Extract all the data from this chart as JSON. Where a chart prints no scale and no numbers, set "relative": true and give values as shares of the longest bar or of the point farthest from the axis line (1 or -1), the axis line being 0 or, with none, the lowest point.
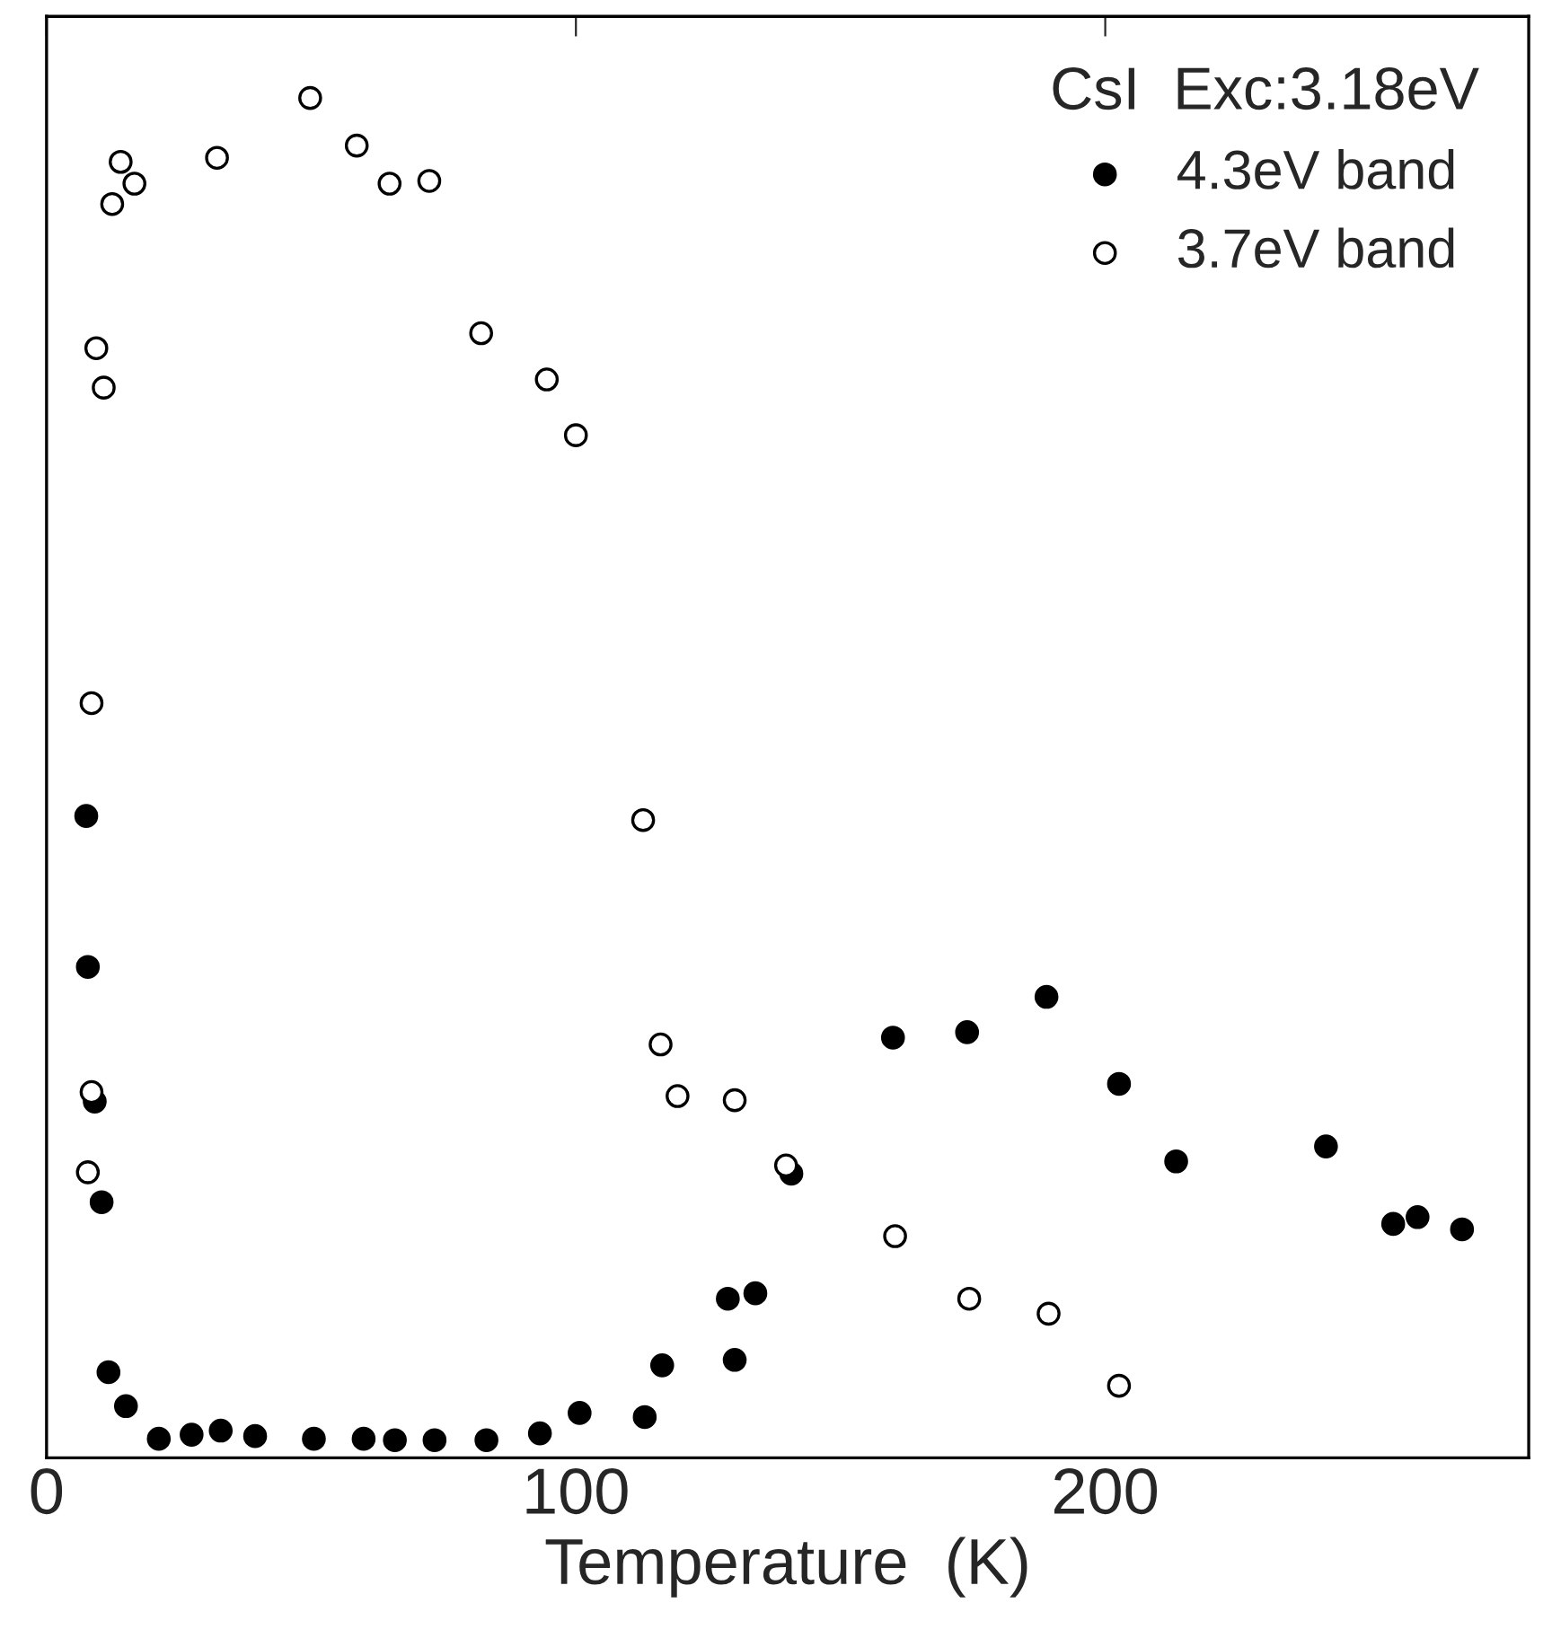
{
  "chart_data": {
    "type": "scatter",
    "xlabel": "Temperature  (K)",
    "legend_title": "CsI  Exc:3.18eV",
    "legend": "top right",
    "marker": "circle",
    "relative": true,
    "tick_labels": "x",
    "xlim": [
      0,
      280
    ],
    "xticks": [
      0,
      100,
      200
    ],
    "series": [
      {
        "name": "4.3eV band",
        "color": "#000000",
        "x": [
          7.5,
          7.8,
          9.1,
          10.4,
          11.7,
          15.0,
          21.2,
          27.4,
          32.9,
          39.4,
          50.5,
          59.9,
          65.8,
          73.3,
          83.1,
          93.2,
          100.7,
          113,
          116.3,
          128.7,
          130,
          133.9,
          140.7,
          159.9,
          173.9,
          188.9,
          202.6,
          213.4,
          241.7,
          254.4,
          259,
          267.4
        ],
        "values": [
          0.472,
          0.361,
          0.262,
          0.188,
          0.063,
          0.038,
          0.014,
          0.017,
          0.02,
          0.016,
          0.014,
          0.014,
          0.013,
          0.013,
          0.013,
          0.018,
          0.033,
          0.03,
          0.068,
          0.117,
          0.072,
          0.121,
          0.209,
          0.309,
          0.313,
          0.339,
          0.275,
          0.218,
          0.229,
          0.172,
          0.177,
          0.168
        ]
      },
      {
        "name": "3.7eV band",
        "color": "#ffffff",
        "x": [
          7.8,
          8.5,
          8.5,
          9.4,
          10.8,
          12.4,
          14.0,
          16.6,
          32.2,
          49.8,
          58.6,
          64.8,
          72.3,
          82.1,
          94.5,
          100,
          112.7,
          116,
          119.2,
          130,
          139.7,
          160.3,
          174.3,
          189.3,
          202.6
        ],
        "values": [
          0.21,
          0.269,
          0.555,
          0.816,
          0.787,
          0.922,
          0.953,
          0.937,
          0.956,
          1.0,
          0.965,
          0.937,
          0.939,
          0.827,
          0.793,
          0.752,
          0.469,
          0.304,
          0.266,
          0.263,
          0.215,
          0.163,
          0.117,
          0.106,
          0.053
        ]
      }
    ]
  }
}
